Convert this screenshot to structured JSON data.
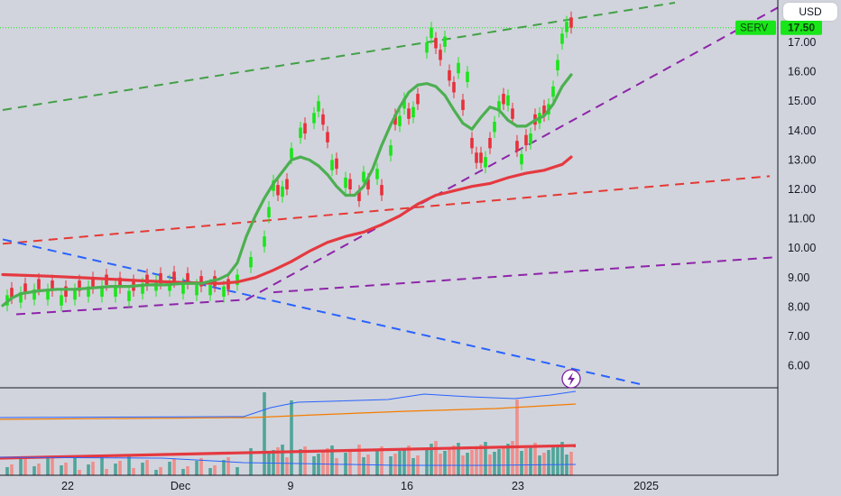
{
  "currency_button": "USD",
  "ticker": "SERV",
  "last_price_label": "17.50",
  "colors": {
    "background": "#d1d4dc",
    "up": "#19e619",
    "down": "#e8303a",
    "ema_fast": "#4caf50",
    "ema_slow": "#e53940",
    "trend_green": "#43a047",
    "trend_purple": "#8e24aa",
    "trend_red": "#e53935",
    "trend_blue": "#2962ff",
    "vol_up": "#4fa59a",
    "vol_down": "#ef8f8c",
    "indicator_blue": "#2962ff",
    "indicator_orange": "#f57c00",
    "indicator_red": "#e53940"
  },
  "chart_data": {
    "type": "candlestick",
    "ylim": [
      5.3,
      18.2
    ],
    "y_ticks": [
      6,
      7,
      8,
      9,
      10,
      11,
      12,
      13,
      14,
      15,
      16,
      17
    ],
    "y_tick_labels": [
      "6.00",
      "7.00",
      "8.00",
      "9.00",
      "10.00",
      "11.00",
      "12.00",
      "13.00",
      "14.00",
      "15.00",
      "16.00",
      "17.00"
    ],
    "x_tick_labels": [
      "22",
      "Dec",
      "9",
      "16",
      "23",
      "2025"
    ],
    "last_price": 17.5,
    "ticker": "SERV",
    "annotation_icon": "lightning-icon",
    "ema_fast": [
      [
        0,
        8.05
      ],
      [
        2,
        8.3
      ],
      [
        4,
        8.45
      ],
      [
        8,
        8.55
      ],
      [
        12,
        8.6
      ],
      [
        16,
        8.6
      ],
      [
        20,
        8.65
      ],
      [
        24,
        8.7
      ],
      [
        28,
        8.7
      ],
      [
        32,
        8.75
      ],
      [
        36,
        8.75
      ],
      [
        40,
        8.8
      ],
      [
        44,
        8.8
      ],
      [
        48,
        8.95
      ],
      [
        50,
        9.1
      ],
      [
        52,
        9.5
      ],
      [
        54,
        10.4
      ],
      [
        56,
        11.1
      ],
      [
        58,
        11.7
      ],
      [
        60,
        12.2
      ],
      [
        62,
        12.6
      ],
      [
        64,
        13.0
      ],
      [
        66,
        13.1
      ],
      [
        68,
        13.0
      ],
      [
        70,
        12.8
      ],
      [
        72,
        12.5
      ],
      [
        74,
        12.1
      ],
      [
        76,
        11.8
      ],
      [
        78,
        11.8
      ],
      [
        80,
        12.1
      ],
      [
        82,
        12.7
      ],
      [
        84,
        13.5
      ],
      [
        86,
        14.2
      ],
      [
        88,
        14.8
      ],
      [
        90,
        15.3
      ],
      [
        92,
        15.55
      ],
      [
        94,
        15.6
      ],
      [
        96,
        15.5
      ],
      [
        98,
        15.2
      ],
      [
        100,
        14.7
      ],
      [
        102,
        14.25
      ],
      [
        104,
        14.05
      ],
      [
        106,
        14.45
      ],
      [
        108,
        14.8
      ],
      [
        110,
        14.7
      ],
      [
        112,
        14.35
      ],
      [
        114,
        14.15
      ],
      [
        116,
        14.15
      ],
      [
        118,
        14.35
      ],
      [
        120,
        14.5
      ],
      [
        122,
        14.9
      ],
      [
        124,
        15.5
      ],
      [
        126,
        15.9
      ]
    ],
    "ema_slow": [
      [
        0,
        9.1
      ],
      [
        10,
        9.05
      ],
      [
        20,
        8.98
      ],
      [
        30,
        8.9
      ],
      [
        40,
        8.83
      ],
      [
        48,
        8.8
      ],
      [
        52,
        8.85
      ],
      [
        56,
        9.0
      ],
      [
        60,
        9.25
      ],
      [
        64,
        9.55
      ],
      [
        68,
        9.9
      ],
      [
        72,
        10.2
      ],
      [
        76,
        10.4
      ],
      [
        80,
        10.55
      ],
      [
        84,
        10.8
      ],
      [
        88,
        11.1
      ],
      [
        92,
        11.5
      ],
      [
        96,
        11.8
      ],
      [
        100,
        11.95
      ],
      [
        104,
        12.1
      ],
      [
        108,
        12.2
      ],
      [
        112,
        12.4
      ],
      [
        116,
        12.55
      ],
      [
        120,
        12.65
      ],
      [
        124,
        12.85
      ],
      [
        126,
        13.1
      ]
    ],
    "trendlines": [
      {
        "color": "trend_green",
        "from": [
          0,
          14.7
        ],
        "to": [
          149,
          18.35
        ]
      },
      {
        "color": "trend_red",
        "from": [
          0,
          10.15
        ],
        "to": [
          170,
          12.45
        ]
      },
      {
        "color": "trend_purple",
        "from": [
          3,
          7.75
        ],
        "to": [
          54,
          8.25
        ]
      },
      {
        "color": "trend_purple",
        "from": [
          54,
          8.25
        ],
        "to": [
          172,
          18.2
        ]
      },
      {
        "color": "trend_purple",
        "from": [
          60,
          8.5
        ],
        "to": [
          172,
          9.7
        ]
      },
      {
        "color": "trend_blue",
        "from": [
          0,
          10.3
        ],
        "to": [
          142,
          5.35
        ]
      }
    ],
    "candles_up": [
      [
        1,
        8.4
      ],
      [
        4,
        8.5
      ],
      [
        7,
        8.6
      ],
      [
        10,
        8.6
      ],
      [
        13,
        8.4
      ],
      [
        16,
        8.6
      ],
      [
        19,
        8.7
      ],
      [
        22,
        8.7
      ],
      [
        25,
        8.7
      ],
      [
        28,
        8.55
      ],
      [
        31,
        8.8
      ],
      [
        34,
        8.9
      ],
      [
        37,
        8.9
      ],
      [
        40,
        8.8
      ],
      [
        43,
        8.75
      ],
      [
        46,
        8.75
      ],
      [
        49,
        8.7
      ],
      [
        52,
        9.1
      ],
      [
        55,
        9.7
      ],
      [
        58,
        10.4
      ],
      [
        59,
        11.4
      ],
      [
        60,
        12.3
      ],
      [
        62,
        12.1
      ],
      [
        64,
        13.4
      ],
      [
        66,
        14.1
      ],
      [
        69,
        14.6
      ],
      [
        70,
        15.0
      ],
      [
        73,
        13.0
      ],
      [
        76,
        12.4
      ],
      [
        80,
        12.6
      ],
      [
        83,
        12.7
      ],
      [
        86,
        13.5
      ],
      [
        88,
        14.5
      ],
      [
        89,
        15.1
      ],
      [
        91,
        14.8
      ],
      [
        94,
        17.0
      ],
      [
        95,
        17.5
      ],
      [
        98,
        17.2
      ],
      [
        101,
        16.3
      ],
      [
        103,
        16.0
      ],
      [
        107,
        13.1
      ],
      [
        109,
        14.3
      ],
      [
        110,
        15.0
      ],
      [
        112,
        15.2
      ],
      [
        115,
        13.2
      ],
      [
        117,
        13.9
      ],
      [
        119,
        14.6
      ],
      [
        121,
        14.9
      ],
      [
        122,
        15.5
      ],
      [
        123,
        16.4
      ],
      [
        124,
        17.3
      ],
      [
        125,
        17.7
      ]
    ],
    "candles_down": [
      [
        2,
        8.3
      ],
      [
        5,
        8.45
      ],
      [
        8,
        8.6
      ],
      [
        11,
        8.55
      ],
      [
        14,
        8.35
      ],
      [
        17,
        8.55
      ],
      [
        20,
        8.65
      ],
      [
        23,
        8.75
      ],
      [
        26,
        8.65
      ],
      [
        29,
        8.55
      ],
      [
        32,
        8.75
      ],
      [
        35,
        8.8
      ],
      [
        38,
        8.85
      ],
      [
        41,
        8.8
      ],
      [
        44,
        8.7
      ],
      [
        47,
        8.7
      ],
      [
        50,
        8.6
      ],
      [
        61,
        11.8
      ],
      [
        63,
        12.0
      ],
      [
        67,
        13.9
      ],
      [
        71,
        14.2
      ],
      [
        72,
        13.6
      ],
      [
        74,
        12.7
      ],
      [
        77,
        12.0
      ],
      [
        79,
        11.6
      ],
      [
        81,
        12.0
      ],
      [
        84,
        11.8
      ],
      [
        87,
        14.2
      ],
      [
        90,
        14.4
      ],
      [
        92,
        14.9
      ],
      [
        96,
        16.8
      ],
      [
        97,
        16.4
      ],
      [
        99,
        15.7
      ],
      [
        100,
        15.3
      ],
      [
        102,
        14.7
      ],
      [
        104,
        13.4
      ],
      [
        105,
        12.9
      ],
      [
        106,
        12.9
      ],
      [
        108,
        13.4
      ],
      [
        111,
        14.9
      ],
      [
        113,
        14.4
      ],
      [
        114,
        13.3
      ],
      [
        116,
        13.5
      ],
      [
        118,
        14.2
      ],
      [
        120,
        14.5
      ],
      [
        126,
        17.5
      ]
    ]
  }
}
